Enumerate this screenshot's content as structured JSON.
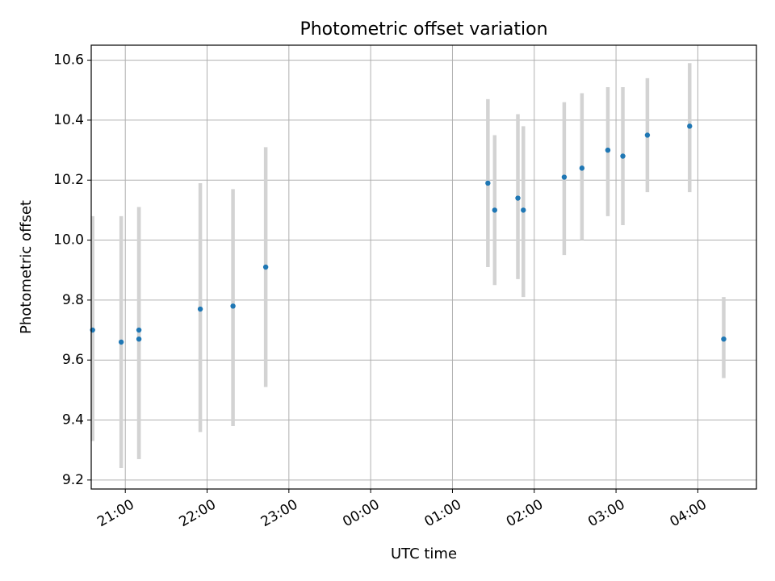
{
  "chart_data": {
    "type": "scatter",
    "title": "Photometric offset variation",
    "xlabel": "UTC time",
    "ylabel": "Photometric offset",
    "x_ticks": [
      "21:00",
      "22:00",
      "23:00",
      "00:00",
      "01:00",
      "02:00",
      "03:00",
      "04:00"
    ],
    "y_ticks": [
      "9.2",
      "9.4",
      "9.6",
      "9.8",
      "10.0",
      "10.2",
      "10.4",
      "10.6"
    ],
    "xlim": [
      "20:35",
      "04:43"
    ],
    "ylim": [
      9.17,
      10.65
    ],
    "grid": true,
    "colors": {
      "point": "#1f77b4",
      "errorbar": "#d3d3d3",
      "grid": "#b0b0b0"
    },
    "points": [
      {
        "x": "20:36",
        "y": 9.7,
        "ylow": 9.33,
        "yhigh": 10.08
      },
      {
        "x": "20:57",
        "y": 9.66,
        "ylow": 9.24,
        "yhigh": 10.08
      },
      {
        "x": "21:10",
        "y": 9.7,
        "ylow": 9.27,
        "yhigh": 10.11
      },
      {
        "x": "21:10",
        "y": 9.67,
        "ylow": 9.27,
        "yhigh": 10.11
      },
      {
        "x": "21:55",
        "y": 9.77,
        "ylow": 9.36,
        "yhigh": 10.19
      },
      {
        "x": "22:19",
        "y": 9.78,
        "ylow": 9.38,
        "yhigh": 10.17
      },
      {
        "x": "22:43",
        "y": 9.91,
        "ylow": 9.51,
        "yhigh": 10.31
      },
      {
        "x": "01:26",
        "y": 10.19,
        "ylow": 9.91,
        "yhigh": 10.47
      },
      {
        "x": "01:31",
        "y": 10.1,
        "ylow": 9.85,
        "yhigh": 10.35
      },
      {
        "x": "01:48",
        "y": 10.14,
        "ylow": 9.87,
        "yhigh": 10.42
      },
      {
        "x": "01:52",
        "y": 10.1,
        "ylow": 9.81,
        "yhigh": 10.38
      },
      {
        "x": "02:22",
        "y": 10.21,
        "ylow": 9.95,
        "yhigh": 10.46
      },
      {
        "x": "02:35",
        "y": 10.24,
        "ylow": 10.0,
        "yhigh": 10.49
      },
      {
        "x": "02:54",
        "y": 10.3,
        "ylow": 10.08,
        "yhigh": 10.51
      },
      {
        "x": "03:05",
        "y": 10.28,
        "ylow": 10.05,
        "yhigh": 10.51
      },
      {
        "x": "03:23",
        "y": 10.35,
        "ylow": 10.16,
        "yhigh": 10.54
      },
      {
        "x": "03:54",
        "y": 10.38,
        "ylow": 10.16,
        "yhigh": 10.59
      },
      {
        "x": "04:19",
        "y": 9.67,
        "ylow": 9.54,
        "yhigh": 9.81
      }
    ]
  }
}
